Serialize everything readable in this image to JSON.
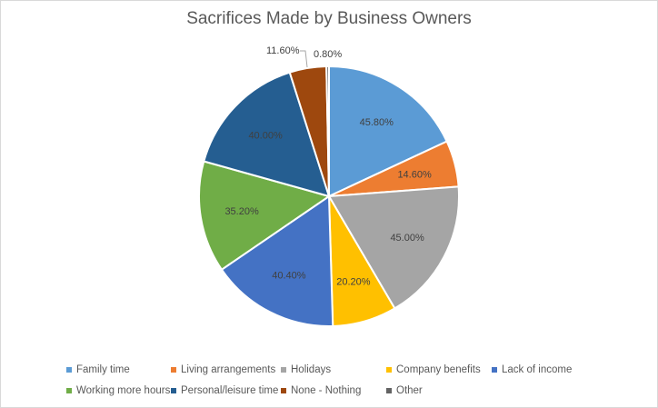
{
  "chart_data": {
    "type": "pie",
    "title": "Sacrifices Made by Business Owners",
    "categories": [
      "Family time",
      "Living arrangements",
      "Holidays",
      "Company benefits",
      "Lack of income",
      "Working more hours",
      "Personal/leisure time",
      "None - Nothing",
      "Other"
    ],
    "values": [
      45.8,
      14.6,
      45.0,
      20.2,
      40.4,
      35.2,
      40.0,
      11.6,
      0.8
    ],
    "labels": [
      "45.80%",
      "14.60%",
      "45.00%",
      "20.20%",
      "40.40%",
      "35.20%",
      "40.00%",
      "11.60%",
      "0.80%"
    ],
    "colors": [
      "#5b9bd5",
      "#ed7d31",
      "#a5a5a5",
      "#ffc000",
      "#4472c4",
      "#70ad47",
      "#255e91",
      "#9e480e",
      "#636363"
    ],
    "legend_position": "bottom",
    "start_angle": 0,
    "direction": "clockwise"
  },
  "title": "Sacrifices Made by Business Owners",
  "legend": [
    {
      "label": "Family time",
      "color": "#5b9bd5"
    },
    {
      "label": "Living arrangements",
      "color": "#ed7d31"
    },
    {
      "label": "Holidays",
      "color": "#a5a5a5"
    },
    {
      "label": "Company benefits",
      "color": "#ffc000"
    },
    {
      "label": "Lack of income",
      "color": "#4472c4"
    },
    {
      "label": "Working more hours",
      "color": "#70ad47"
    },
    {
      "label": "Personal/leisure time",
      "color": "#255e91"
    },
    {
      "label": "None - Nothing",
      "color": "#9e480e"
    },
    {
      "label": "Other",
      "color": "#636363"
    }
  ]
}
